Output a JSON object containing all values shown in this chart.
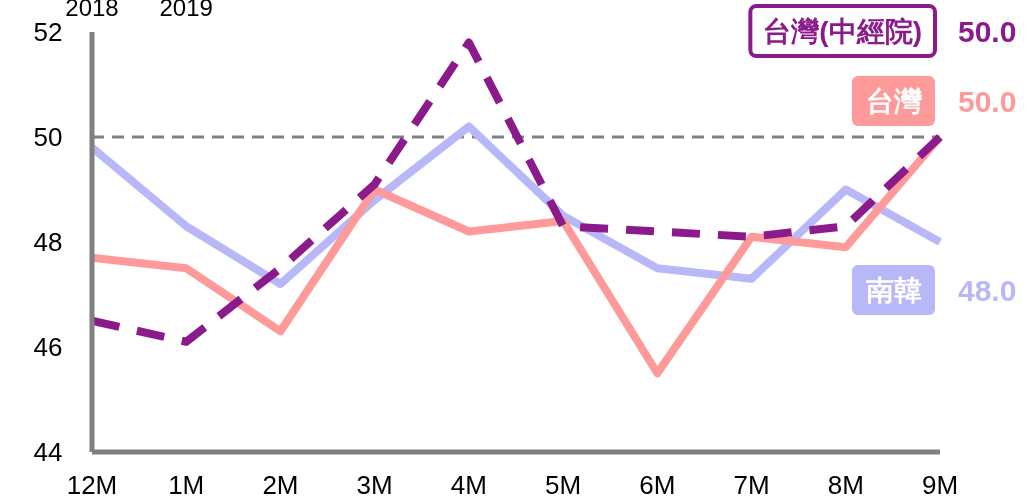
{
  "chart_data": {
    "type": "line",
    "categories": [
      "12M",
      "1M",
      "2M",
      "3M",
      "4M",
      "5M",
      "6M",
      "7M",
      "8M",
      "9M"
    ],
    "series": [
      {
        "name": "台灣(中經院)",
        "color": "#8b1a8b",
        "line_style": "dashed",
        "values": [
          46.5,
          46.1,
          47.5,
          49.1,
          51.8,
          48.3,
          48.2,
          48.1,
          48.3,
          50.0
        ],
        "value_labels": [
          null,
          null,
          null,
          null,
          null,
          null,
          null,
          null,
          null,
          "50.0"
        ]
      },
      {
        "name": "台灣",
        "color": "#ff9a9a",
        "line_style": "solid",
        "values": [
          47.7,
          47.5,
          46.3,
          49.0,
          48.2,
          48.4,
          45.5,
          48.1,
          47.9,
          50.0
        ],
        "value_labels": [
          null,
          null,
          null,
          null,
          null,
          null,
          null,
          null,
          null,
          "50.0"
        ]
      },
      {
        "name": "南韓",
        "color": "#b8b8f8",
        "line_style": "solid",
        "values": [
          49.8,
          48.3,
          47.2,
          48.8,
          50.2,
          48.5,
          47.5,
          47.3,
          49.0,
          48.0
        ],
        "value_labels": [
          null,
          null,
          null,
          null,
          null,
          null,
          null,
          null,
          null,
          "48.0"
        ]
      }
    ],
    "ylim": [
      44,
      52
    ],
    "yticks": [
      44,
      46,
      48,
      50,
      52
    ],
    "ref_lines": [
      {
        "axis": "y",
        "value": 50,
        "color": "#808080",
        "line_style": "dashed"
      }
    ],
    "annotations": [
      "2018",
      "2019"
    ]
  }
}
